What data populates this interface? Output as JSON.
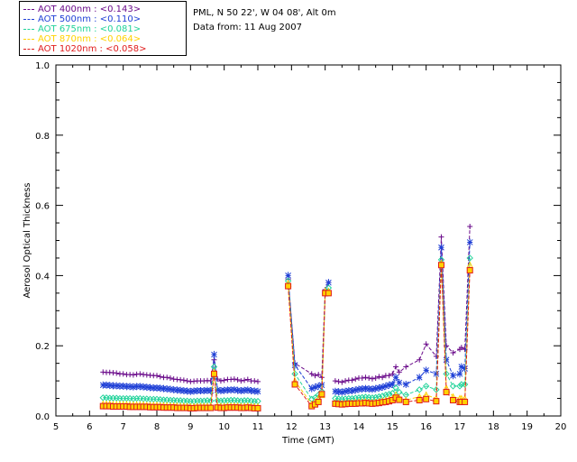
{
  "info": {
    "location": "PML, N 50 22', W 04 08', Alt 0m",
    "date": "Data from: 11 Aug 2007"
  },
  "legend": [
    {
      "label": "AOT  400nm : <0.143>",
      "color": "#6a0a8a"
    },
    {
      "label": "AOT  500nm : <0.110>",
      "color": "#1e3fd6"
    },
    {
      "label": "AOT  675nm : <0.081>",
      "color": "#22d39a"
    },
    {
      "label": "AOT  870nm : <0.064>",
      "color": "#ffd200"
    },
    {
      "label": "AOT 1020nm : <0.058>",
      "color": "#e01b1b"
    }
  ],
  "chart_data": {
    "type": "line",
    "title": "",
    "xlabel": "Time (GMT)",
    "ylabel": "Aerosol Optical Thickness",
    "xlim": [
      5,
      20
    ],
    "ylim": [
      0,
      1
    ],
    "xticks": [
      "5",
      "6",
      "7",
      "8",
      "9",
      "10",
      "11",
      "12",
      "13",
      "14",
      "15",
      "16",
      "17",
      "18",
      "19",
      "20"
    ],
    "yticks": [
      "0.0",
      "0.2",
      "0.4",
      "0.6",
      "0.8",
      "1.0"
    ],
    "x": [
      6.4,
      6.5,
      6.6,
      6.7,
      6.8,
      6.9,
      7.0,
      7.1,
      7.2,
      7.3,
      7.4,
      7.5,
      7.6,
      7.7,
      7.8,
      7.9,
      8.0,
      8.1,
      8.2,
      8.3,
      8.4,
      8.5,
      8.6,
      8.7,
      8.8,
      8.9,
      9.0,
      9.1,
      9.2,
      9.3,
      9.4,
      9.5,
      9.6,
      9.7,
      9.8,
      9.9,
      10.0,
      10.1,
      10.2,
      10.3,
      10.4,
      10.5,
      10.6,
      10.7,
      10.8,
      10.9,
      11.0,
      11.9,
      12.1,
      12.6,
      12.7,
      12.8,
      12.9,
      13.0,
      13.1,
      13.3,
      13.4,
      13.5,
      13.6,
      13.7,
      13.8,
      13.9,
      14.0,
      14.1,
      14.2,
      14.3,
      14.4,
      14.5,
      14.6,
      14.7,
      14.8,
      14.9,
      15.0,
      15.1,
      15.2,
      15.4,
      15.8,
      16.0,
      16.3,
      16.45,
      16.6,
      16.8,
      17.0,
      17.05,
      17.15,
      17.3
    ],
    "series": [
      {
        "name": "AOT 400nm",
        "marker": "plus",
        "values": [
          0.125,
          0.124,
          0.124,
          0.123,
          0.122,
          0.12,
          0.12,
          0.118,
          0.118,
          0.117,
          0.119,
          0.12,
          0.118,
          0.117,
          0.116,
          0.115,
          0.115,
          0.112,
          0.11,
          0.11,
          0.108,
          0.105,
          0.104,
          0.103,
          0.102,
          0.1,
          0.098,
          0.099,
          0.1,
          0.1,
          0.1,
          0.101,
          0.1,
          0.16,
          0.105,
          0.1,
          0.102,
          0.104,
          0.104,
          0.105,
          0.103,
          0.1,
          0.102,
          0.104,
          0.1,
          0.1,
          0.098,
          0.39,
          0.15,
          0.12,
          0.115,
          0.118,
          0.11,
          0.36,
          0.38,
          0.1,
          0.098,
          0.096,
          0.1,
          0.102,
          0.102,
          0.105,
          0.108,
          0.108,
          0.11,
          0.108,
          0.106,
          0.108,
          0.112,
          0.11,
          0.115,
          0.115,
          0.12,
          0.14,
          0.125,
          0.14,
          0.16,
          0.205,
          0.17,
          0.51,
          0.2,
          0.18,
          0.19,
          0.195,
          0.19,
          0.54
        ]
      },
      {
        "name": "AOT 500nm",
        "marker": "asterisk",
        "values": [
          0.088,
          0.088,
          0.087,
          0.086,
          0.086,
          0.085,
          0.085,
          0.084,
          0.084,
          0.083,
          0.084,
          0.084,
          0.083,
          0.082,
          0.081,
          0.08,
          0.08,
          0.079,
          0.078,
          0.077,
          0.076,
          0.075,
          0.074,
          0.073,
          0.072,
          0.071,
          0.07,
          0.071,
          0.072,
          0.072,
          0.072,
          0.073,
          0.072,
          0.175,
          0.074,
          0.072,
          0.073,
          0.074,
          0.074,
          0.075,
          0.073,
          0.072,
          0.073,
          0.074,
          0.072,
          0.071,
          0.07,
          0.4,
          0.145,
          0.078,
          0.082,
          0.085,
          0.088,
          0.35,
          0.38,
          0.07,
          0.069,
          0.068,
          0.07,
          0.072,
          0.072,
          0.074,
          0.076,
          0.077,
          0.078,
          0.077,
          0.076,
          0.078,
          0.08,
          0.082,
          0.085,
          0.088,
          0.09,
          0.11,
          0.095,
          0.09,
          0.11,
          0.13,
          0.12,
          0.48,
          0.16,
          0.115,
          0.12,
          0.14,
          0.135,
          0.495
        ]
      },
      {
        "name": "AOT 675nm",
        "marker": "diamond",
        "values": [
          0.052,
          0.052,
          0.051,
          0.051,
          0.051,
          0.05,
          0.05,
          0.05,
          0.05,
          0.049,
          0.05,
          0.05,
          0.049,
          0.049,
          0.048,
          0.048,
          0.048,
          0.047,
          0.046,
          0.046,
          0.045,
          0.045,
          0.044,
          0.044,
          0.043,
          0.043,
          0.042,
          0.042,
          0.043,
          0.043,
          0.043,
          0.044,
          0.043,
          0.14,
          0.044,
          0.043,
          0.044,
          0.044,
          0.045,
          0.045,
          0.044,
          0.043,
          0.044,
          0.044,
          0.043,
          0.042,
          0.042,
          0.385,
          0.12,
          0.048,
          0.052,
          0.06,
          0.07,
          0.35,
          0.365,
          0.05,
          0.049,
          0.048,
          0.049,
          0.05,
          0.05,
          0.051,
          0.052,
          0.053,
          0.054,
          0.053,
          0.052,
          0.053,
          0.055,
          0.057,
          0.06,
          0.062,
          0.065,
          0.08,
          0.068,
          0.06,
          0.075,
          0.085,
          0.075,
          0.445,
          0.12,
          0.085,
          0.085,
          0.09,
          0.09,
          0.45
        ]
      },
      {
        "name": "AOT 870nm",
        "marker": "triangle",
        "values": [
          0.034,
          0.034,
          0.034,
          0.033,
          0.033,
          0.033,
          0.033,
          0.033,
          0.032,
          0.032,
          0.032,
          0.032,
          0.032,
          0.031,
          0.031,
          0.031,
          0.031,
          0.03,
          0.03,
          0.03,
          0.029,
          0.029,
          0.029,
          0.028,
          0.028,
          0.028,
          0.027,
          0.027,
          0.028,
          0.028,
          0.028,
          0.028,
          0.028,
          0.125,
          0.029,
          0.028,
          0.028,
          0.029,
          0.029,
          0.029,
          0.029,
          0.028,
          0.028,
          0.029,
          0.028,
          0.027,
          0.027,
          0.378,
          0.1,
          0.034,
          0.04,
          0.05,
          0.06,
          0.355,
          0.355,
          0.038,
          0.037,
          0.036,
          0.037,
          0.038,
          0.038,
          0.039,
          0.04,
          0.04,
          0.041,
          0.04,
          0.039,
          0.04,
          0.041,
          0.043,
          0.045,
          0.048,
          0.05,
          0.06,
          0.052,
          0.045,
          0.055,
          0.06,
          0.05,
          0.435,
          0.08,
          0.055,
          0.05,
          0.05,
          0.05,
          0.43
        ]
      },
      {
        "name": "AOT 1020nm",
        "marker": "square",
        "values": [
          0.028,
          0.028,
          0.028,
          0.027,
          0.027,
          0.027,
          0.027,
          0.027,
          0.026,
          0.026,
          0.026,
          0.026,
          0.026,
          0.026,
          0.025,
          0.025,
          0.025,
          0.025,
          0.024,
          0.024,
          0.024,
          0.024,
          0.023,
          0.023,
          0.023,
          0.023,
          0.022,
          0.022,
          0.023,
          0.023,
          0.023,
          0.023,
          0.023,
          0.12,
          0.024,
          0.023,
          0.023,
          0.024,
          0.024,
          0.024,
          0.024,
          0.023,
          0.023,
          0.024,
          0.023,
          0.022,
          0.022,
          0.37,
          0.09,
          0.028,
          0.033,
          0.04,
          0.062,
          0.35,
          0.35,
          0.035,
          0.034,
          0.033,
          0.034,
          0.035,
          0.035,
          0.035,
          0.036,
          0.036,
          0.037,
          0.036,
          0.035,
          0.036,
          0.037,
          0.039,
          0.04,
          0.042,
          0.045,
          0.052,
          0.046,
          0.04,
          0.045,
          0.048,
          0.042,
          0.43,
          0.068,
          0.045,
          0.04,
          0.04,
          0.04,
          0.415
        ]
      }
    ]
  }
}
